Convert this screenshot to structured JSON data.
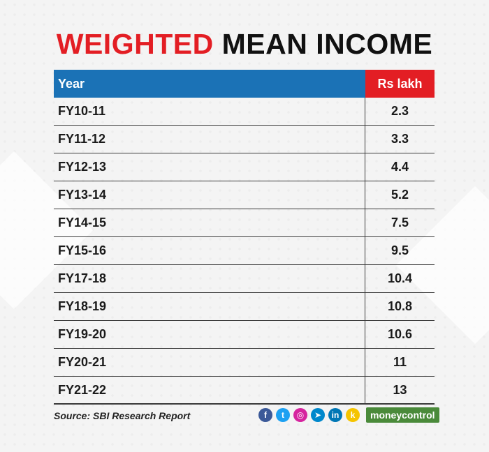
{
  "title": {
    "part1": "WEIGHTED",
    "part2": "MEAN INCOME"
  },
  "chart_data": {
    "type": "table",
    "columns": [
      "Year",
      "Rs lakh"
    ],
    "rows": [
      [
        "FY10-11",
        "2.3"
      ],
      [
        "FY11-12",
        "3.3"
      ],
      [
        "FY12-13",
        "4.4"
      ],
      [
        "FY13-14",
        "5.2"
      ],
      [
        "FY14-15",
        "7.5"
      ],
      [
        "FY15-16",
        "9.5"
      ],
      [
        "FY17-18",
        "10.4"
      ],
      [
        "FY18-19",
        "10.8"
      ],
      [
        "FY19-20",
        "10.6"
      ],
      [
        "FY20-21",
        "11"
      ],
      [
        "FY21-22",
        "13"
      ]
    ]
  },
  "footer": {
    "source": "Source: SBI Research Report",
    "brand": "moneycontrol",
    "social": [
      {
        "name": "facebook-icon",
        "glyph": "f",
        "color": "#3b5998"
      },
      {
        "name": "twitter-icon",
        "glyph": "t",
        "color": "#1da1f2"
      },
      {
        "name": "instagram-icon",
        "glyph": "◎",
        "color": "#d6249f"
      },
      {
        "name": "telegram-icon",
        "glyph": "➤",
        "color": "#0088cc"
      },
      {
        "name": "linkedin-icon",
        "glyph": "in",
        "color": "#0077b5"
      },
      {
        "name": "koo-icon",
        "glyph": "k",
        "color": "#f5c400"
      }
    ]
  },
  "colors": {
    "accent_red": "#e31e24",
    "header_blue": "#1b72b6",
    "brand_green": "#4a8a3a"
  }
}
